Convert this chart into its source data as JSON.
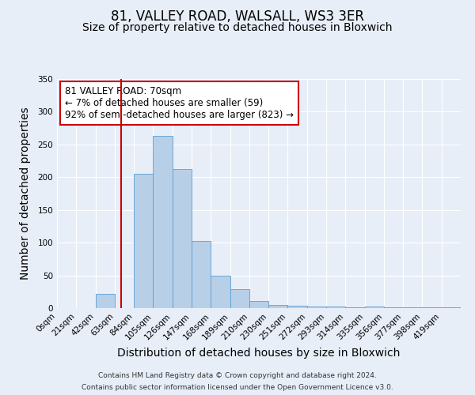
{
  "title": "81, VALLEY ROAD, WALSALL, WS3 3ER",
  "subtitle": "Size of property relative to detached houses in Bloxwich",
  "xlabel": "Distribution of detached houses by size in Bloxwich",
  "ylabel": "Number of detached properties",
  "bar_labels": [
    "0sqm",
    "21sqm",
    "42sqm",
    "63sqm",
    "84sqm",
    "105sqm",
    "126sqm",
    "147sqm",
    "168sqm",
    "189sqm",
    "210sqm",
    "230sqm",
    "251sqm",
    "272sqm",
    "293sqm",
    "314sqm",
    "335sqm",
    "356sqm",
    "377sqm",
    "398sqm",
    "419sqm"
  ],
  "bar_values": [
    0,
    0,
    22,
    0,
    205,
    263,
    212,
    103,
    50,
    29,
    11,
    5,
    4,
    3,
    2,
    1,
    3,
    1,
    1,
    1,
    1
  ],
  "bar_color": "#b8cfe8",
  "bar_edge_color": "#5a9fd4",
  "red_line_x": 70,
  "bin_width": 21,
  "ylim": [
    0,
    350
  ],
  "yticks": [
    0,
    50,
    100,
    150,
    200,
    250,
    300,
    350
  ],
  "annotation_title": "81 VALLEY ROAD: 70sqm",
  "annotation_line1": "← 7% of detached houses are smaller (59)",
  "annotation_line2": "92% of semi-detached houses are larger (823) →",
  "annotation_box_color": "#ffffff",
  "annotation_border_color": "#cc0000",
  "footer_line1": "Contains HM Land Registry data © Crown copyright and database right 2024.",
  "footer_line2": "Contains public sector information licensed under the Open Government Licence v3.0.",
  "background_color": "#e8eef8",
  "grid_color": "#ffffff",
  "title_fontsize": 12,
  "subtitle_fontsize": 10,
  "axis_label_fontsize": 10,
  "tick_fontsize": 7.5,
  "annotation_fontsize": 8.5,
  "footer_fontsize": 6.5
}
